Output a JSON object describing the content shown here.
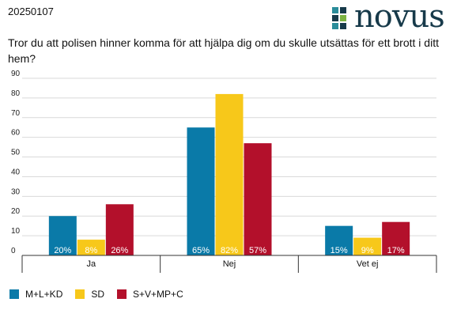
{
  "header": {
    "date": "20250107",
    "logo_text": "novus",
    "logo_icon": "novus-logo-mark"
  },
  "question": "Tror du att polisen hinner komma för att hjälpa dig om du skulle utsättas för ett brott i ditt hem?",
  "colors": {
    "series": [
      "#0a7aa8",
      "#f7c81a",
      "#b3102b"
    ],
    "logo_dark": "#173a4a",
    "logo_teal": "#2a8c9a",
    "logo_green": "#7cb342",
    "grid": "#d9d9d9"
  },
  "chart_data": {
    "type": "bar",
    "title": "",
    "xlabel": "",
    "ylabel": "",
    "ylim": [
      0,
      90
    ],
    "yticks": [
      0,
      10,
      20,
      30,
      40,
      50,
      60,
      70,
      80,
      90
    ],
    "grid": true,
    "legend_position": "bottom-left",
    "categories": [
      "Ja",
      "Nej",
      "Vet ej"
    ],
    "series": [
      {
        "name": "M+L+KD",
        "values": [
          20,
          65,
          15
        ],
        "labels": [
          "20%",
          "65%",
          "15%"
        ]
      },
      {
        "name": "SD",
        "values": [
          8,
          82,
          9
        ],
        "labels": [
          "8%",
          "82%",
          "9%"
        ]
      },
      {
        "name": "S+V+MP+C",
        "values": [
          26,
          57,
          17
        ],
        "labels": [
          "26%",
          "57%",
          "17%"
        ]
      }
    ]
  }
}
